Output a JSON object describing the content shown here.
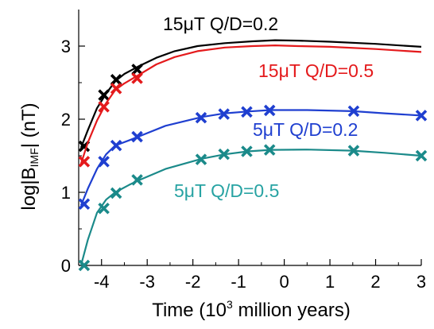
{
  "chart_data": {
    "type": "line",
    "xlabel": {
      "pre": "Time (10",
      "sup": "3",
      "post": " million years)"
    },
    "ylabel": {
      "pre": "log|B",
      "sub": "IMF",
      "post": "| (nT)"
    },
    "xlim": [
      -4.5,
      3.0
    ],
    "ylim": [
      0,
      3.5
    ],
    "xticks": [
      -4,
      -3,
      -2,
      -1,
      0,
      1,
      2,
      3
    ],
    "yticks": [
      0,
      1,
      2,
      3
    ],
    "grid": false,
    "series": [
      {
        "name": "15μT Q/D=0.2",
        "color": "#000000",
        "line_x": [
          -4.45,
          -4.3,
          -4.1,
          -3.9,
          -3.7,
          -3.5,
          -3.2,
          -2.8,
          -2.4,
          -1.9,
          -1.3,
          -0.7,
          -0.2,
          0.3,
          1.0,
          2.0,
          3.0
        ],
        "line_y": [
          1.61,
          1.85,
          2.15,
          2.35,
          2.52,
          2.62,
          2.72,
          2.84,
          2.93,
          3.0,
          3.04,
          3.065,
          3.08,
          3.075,
          3.06,
          3.03,
          2.99
        ],
        "markers_x": [
          -4.38,
          -3.95,
          -3.68,
          -3.22
        ],
        "markers_y": [
          1.63,
          2.33,
          2.54,
          2.68
        ]
      },
      {
        "name": "15μT Q/D=0.5",
        "color": "#e41a1c",
        "line_x": [
          -4.45,
          -4.3,
          -4.1,
          -3.9,
          -3.7,
          -3.5,
          -3.2,
          -2.8,
          -2.4,
          -1.9,
          -1.3,
          -0.7,
          -0.2,
          0.3,
          1.0,
          2.0,
          3.0
        ],
        "line_y": [
          1.39,
          1.68,
          1.98,
          2.22,
          2.4,
          2.49,
          2.6,
          2.75,
          2.85,
          2.93,
          2.98,
          3.0,
          3.01,
          3.0,
          2.99,
          2.96,
          2.92
        ],
        "markers_x": [
          -4.38,
          -3.95,
          -3.68,
          -3.22
        ],
        "markers_y": [
          1.42,
          2.17,
          2.42,
          2.56
        ]
      },
      {
        "name": "5μT Q/D=0.2",
        "color": "#1f3fd0",
        "line_x": [
          -4.45,
          -4.3,
          -4.1,
          -3.9,
          -3.7,
          -3.4,
          -3.2,
          -2.6,
          -1.8,
          -1.3,
          -0.8,
          -0.3,
          0.5,
          1.5,
          2.2,
          3.0
        ],
        "line_y": [
          0.82,
          1.05,
          1.32,
          1.52,
          1.64,
          1.71,
          1.76,
          1.91,
          2.03,
          2.08,
          2.105,
          2.125,
          2.125,
          2.11,
          2.08,
          2.05
        ],
        "markers_x": [
          -4.38,
          -3.95,
          -3.68,
          -3.22,
          -1.82,
          -1.32,
          -0.82,
          -0.32,
          1.52,
          3.0
        ],
        "markers_y": [
          0.84,
          1.42,
          1.64,
          1.76,
          2.02,
          2.07,
          2.1,
          2.12,
          2.11,
          2.05
        ]
      },
      {
        "name": "5μT Q/D=0.5",
        "color": "#1b8a8a",
        "line_x": [
          -4.45,
          -4.3,
          -4.1,
          -3.9,
          -3.7,
          -3.4,
          -3.2,
          -2.6,
          -1.8,
          -1.3,
          -0.8,
          -0.3,
          0.5,
          1.5,
          2.2,
          3.0
        ],
        "line_y": [
          0.0,
          0.35,
          0.72,
          0.9,
          1.0,
          1.1,
          1.16,
          1.32,
          1.46,
          1.52,
          1.56,
          1.58,
          1.585,
          1.57,
          1.54,
          1.5
        ],
        "markers_x": [
          -4.38,
          -3.95,
          -3.68,
          -3.22,
          -1.82,
          -1.32,
          -0.82,
          -0.32,
          1.52,
          3.0
        ],
        "markers_y": [
          0.0,
          0.78,
          0.99,
          1.17,
          1.45,
          1.52,
          1.56,
          1.58,
          1.57,
          1.5
        ]
      }
    ],
    "annotations": [
      {
        "series": 0,
        "text": "15μT Q/D=0.2",
        "color": "#000000"
      },
      {
        "series": 1,
        "text": "15μT Q/D=0.5",
        "color": "#e41a1c"
      },
      {
        "series": 2,
        "text": "5μT Q/D=0.2",
        "color": "#1f3fd0"
      },
      {
        "series": 3,
        "text": "5μT Q/D=0.5",
        "color": "#27a3a3"
      }
    ]
  }
}
